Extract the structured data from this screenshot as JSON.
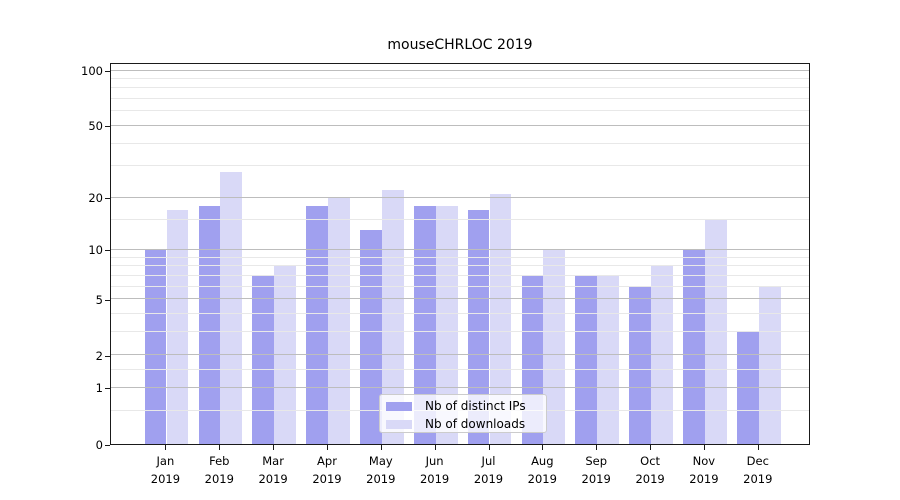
{
  "chart_data": {
    "type": "bar",
    "title": "mouseCHRLOC 2019",
    "categories": [
      "Jan 2019",
      "Feb 2019",
      "Mar 2019",
      "Apr 2019",
      "May 2019",
      "Jun 2019",
      "Jul 2019",
      "Aug 2019",
      "Sep 2019",
      "Oct 2019",
      "Nov 2019",
      "Dec 2019"
    ],
    "series": [
      {
        "name": "Nb of distinct IPs",
        "color": "#a0a0ef",
        "values": [
          10,
          18,
          7,
          18,
          13,
          18,
          17,
          7,
          7,
          6,
          10,
          3
        ]
      },
      {
        "name": "Nb of downloads",
        "color": "#d9d9f7",
        "values": [
          17,
          28,
          8,
          20,
          22,
          18,
          21,
          10,
          7,
          8,
          15,
          6
        ]
      }
    ],
    "xlabel": "",
    "ylabel": "",
    "yscale": "log10(value+1)",
    "ylim": [
      0,
      110
    ],
    "ytick_labels": [
      0,
      1,
      2,
      5,
      10,
      20,
      50,
      100
    ],
    "yticks_minor": [
      0.5,
      1.5,
      3,
      4,
      6,
      7,
      8,
      9,
      15,
      30,
      40,
      60,
      70,
      80,
      90
    ],
    "grid": "on",
    "legend_position": "lower center",
    "colors": {
      "major_grid": "#bdbdbd",
      "minor_grid": "#e8e8e8",
      "spine": "#1a1a1a",
      "text": "#000000",
      "legend_border": "#cccccc",
      "background": "#ffffff"
    }
  }
}
